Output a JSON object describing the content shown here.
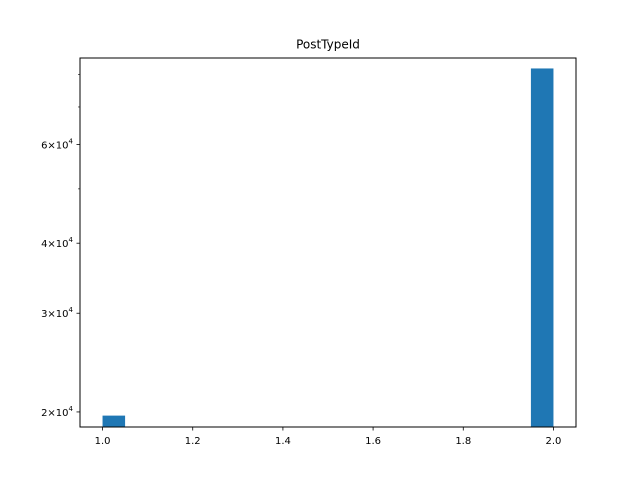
{
  "chart_data": {
    "type": "bar",
    "title": "PostTypeId",
    "xlabel": "",
    "ylabel": "",
    "x_range": [
      0.95,
      2.05
    ],
    "y_range": [
      18800,
      85600
    ],
    "y_scale": "log",
    "grid": false,
    "bar_color": "#1f77b4",
    "bars": [
      {
        "x_start": 1.0,
        "x_end": 1.05,
        "value": 19700
      },
      {
        "x_start": 1.95,
        "x_end": 2.0,
        "value": 82000
      }
    ],
    "x_ticks": [
      {
        "value": 1.0,
        "label": "1.0"
      },
      {
        "value": 1.2,
        "label": "1.2"
      },
      {
        "value": 1.4,
        "label": "1.4"
      },
      {
        "value": 1.6,
        "label": "1.6"
      },
      {
        "value": 1.8,
        "label": "1.8"
      },
      {
        "value": 2.0,
        "label": "2.0"
      }
    ],
    "y_major_ticks": [
      {
        "value": 20000,
        "base": "2",
        "exp": "4"
      },
      {
        "value": 30000,
        "base": "3",
        "exp": "4"
      },
      {
        "value": 40000,
        "base": "4",
        "exp": "4"
      },
      {
        "value": 60000,
        "base": "6",
        "exp": "4"
      }
    ],
    "y_minor_ticks": [
      50000,
      70000,
      80000
    ]
  }
}
